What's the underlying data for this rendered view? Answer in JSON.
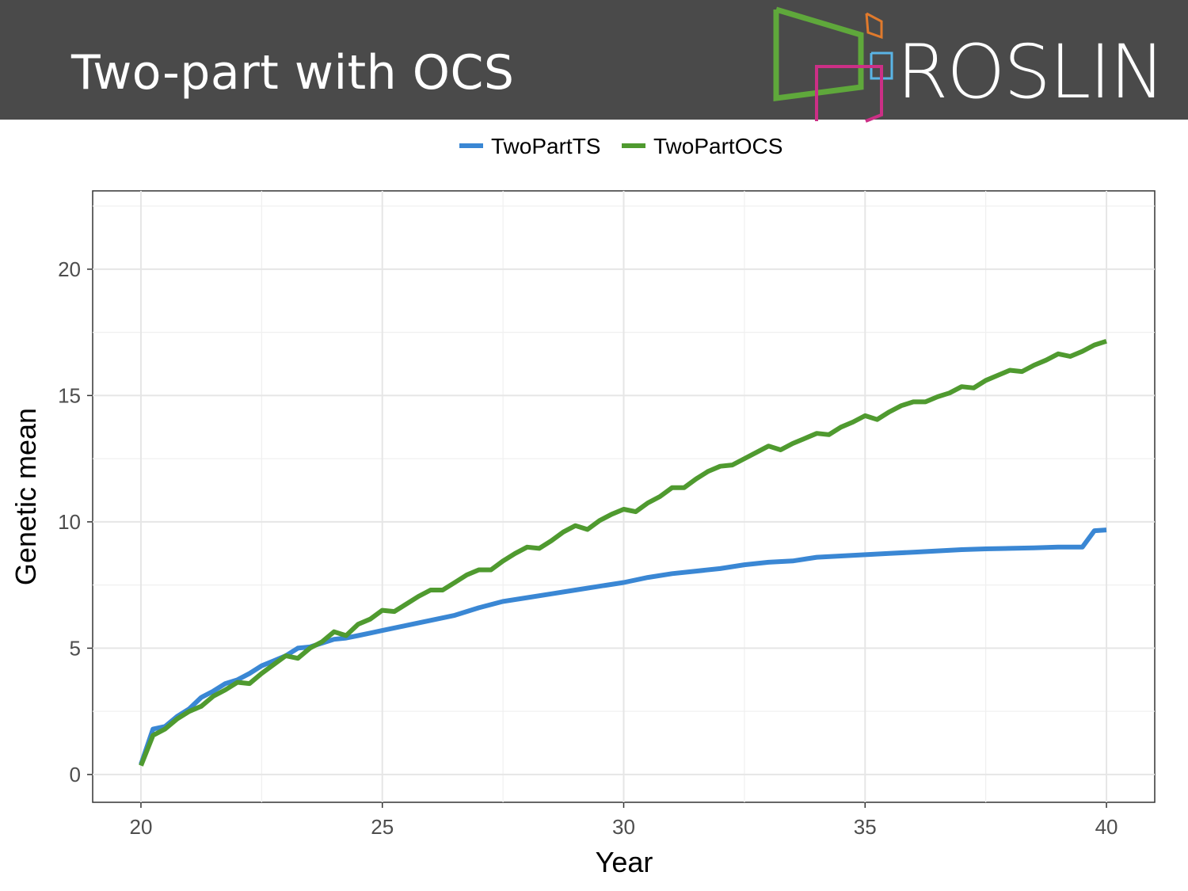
{
  "slide": {
    "title": "Two-part with OCS",
    "logo_text": "ROSLIN"
  },
  "colors": {
    "header_bg": "#4a4a4a",
    "logo_green": "#5fa83b",
    "logo_orange": "#e07a2c",
    "logo_blue": "#5ab4e5",
    "logo_magenta": "#cc2f86"
  },
  "chart_data": {
    "type": "line",
    "xlabel": "Year",
    "ylabel": "Genetic mean",
    "xlim": [
      19,
      41
    ],
    "ylim": [
      -1.1,
      23.1
    ],
    "x_ticks": [
      20,
      25,
      30,
      35,
      40
    ],
    "y_ticks": [
      0,
      5,
      10,
      15,
      20
    ],
    "grid": true,
    "legend_position": "top",
    "series": [
      {
        "name": "TwoPartTS",
        "color": "#3a87d4",
        "x": [
          20,
          20.25,
          20.5,
          20.75,
          21,
          21.25,
          21.5,
          21.75,
          22,
          22.25,
          22.5,
          22.75,
          23,
          23.25,
          23.5,
          23.75,
          24,
          24.25,
          24.5,
          24.75,
          25,
          25.5,
          26,
          26.5,
          27,
          27.5,
          28,
          28.5,
          29,
          29.5,
          30,
          30.5,
          31,
          31.5,
          32,
          32.5,
          33,
          33.5,
          34,
          34.5,
          35,
          35.5,
          36,
          36.5,
          37,
          37.5,
          38,
          38.5,
          39,
          39.25,
          39.5,
          39.75,
          40
        ],
        "values": [
          0.4,
          1.8,
          1.9,
          2.3,
          2.6,
          3.05,
          3.3,
          3.6,
          3.75,
          4.0,
          4.3,
          4.5,
          4.7,
          5.0,
          5.05,
          5.2,
          5.35,
          5.4,
          5.5,
          5.6,
          5.7,
          5.9,
          6.1,
          6.3,
          6.6,
          6.85,
          7.0,
          7.15,
          7.3,
          7.45,
          7.6,
          7.8,
          7.95,
          8.05,
          8.15,
          8.3,
          8.4,
          8.45,
          8.6,
          8.65,
          8.7,
          8.75,
          8.8,
          8.85,
          8.9,
          8.93,
          8.95,
          8.97,
          9.0,
          9.0,
          9.0,
          9.65,
          9.68
        ]
      },
      {
        "name": "TwoPartOCS",
        "color": "#4f9a2f",
        "x": [
          20,
          20.25,
          20.5,
          20.75,
          21,
          21.25,
          21.5,
          21.75,
          22,
          22.25,
          22.5,
          22.75,
          23,
          23.25,
          23.5,
          23.75,
          24,
          24.25,
          24.5,
          24.75,
          25,
          25.25,
          25.5,
          25.75,
          26,
          26.25,
          26.5,
          26.75,
          27,
          27.25,
          27.5,
          27.75,
          28,
          28.25,
          28.5,
          28.75,
          29,
          29.25,
          29.5,
          29.75,
          30,
          30.25,
          30.5,
          30.75,
          31,
          31.25,
          31.5,
          31.75,
          32,
          32.25,
          32.5,
          32.75,
          33,
          33.25,
          33.5,
          33.75,
          34,
          34.25,
          34.5,
          34.75,
          35,
          35.25,
          35.5,
          35.75,
          36,
          36.25,
          36.5,
          36.75,
          37,
          37.25,
          37.5,
          37.75,
          38,
          38.25,
          38.5,
          38.75,
          39,
          39.25,
          39.5,
          39.75,
          40
        ],
        "values": [
          0.35,
          1.55,
          1.8,
          2.2,
          2.5,
          2.7,
          3.1,
          3.35,
          3.65,
          3.6,
          4.0,
          4.35,
          4.7,
          4.6,
          5.0,
          5.25,
          5.65,
          5.5,
          5.95,
          6.15,
          6.5,
          6.45,
          6.75,
          7.05,
          7.3,
          7.3,
          7.6,
          7.9,
          8.1,
          8.1,
          8.45,
          8.75,
          9.0,
          8.95,
          9.25,
          9.6,
          9.85,
          9.7,
          10.05,
          10.3,
          10.5,
          10.4,
          10.75,
          11.0,
          11.35,
          11.35,
          11.7,
          12.0,
          12.2,
          12.25,
          12.5,
          12.75,
          13.0,
          12.85,
          13.1,
          13.3,
          13.5,
          13.45,
          13.75,
          13.95,
          14.2,
          14.05,
          14.35,
          14.6,
          14.75,
          14.75,
          14.95,
          15.1,
          15.35,
          15.3,
          15.6,
          15.8,
          16.0,
          15.95,
          16.2,
          16.4,
          16.65,
          16.55,
          16.75,
          17.0,
          17.15
        ]
      }
    ]
  }
}
